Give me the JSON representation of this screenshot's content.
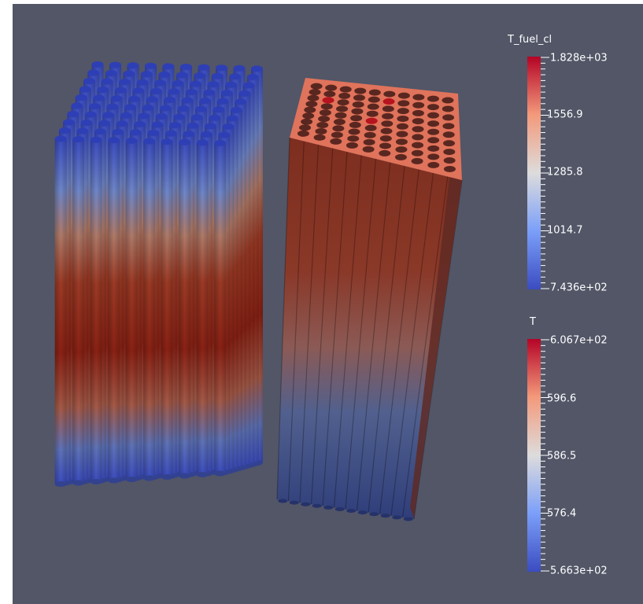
{
  "scene": {
    "objects": [
      "fuel-pin-bundle",
      "coolant-channel-block"
    ]
  },
  "legends": [
    {
      "title": "T_fuel_cl",
      "labels": [
        "1.828e+03",
        "1556.9",
        "1285.8",
        "1014.7",
        "7.436e+02"
      ]
    },
    {
      "title": "T",
      "labels": [
        "6.067e+02",
        "596.6",
        "586.5",
        "576.4",
        "5.663e+02"
      ]
    }
  ],
  "colors": {
    "background": "#525667",
    "colormap": [
      "#3b4cc0",
      "#7b9ff9",
      "#dddcdc",
      "#f39a7b",
      "#b40426"
    ]
  }
}
